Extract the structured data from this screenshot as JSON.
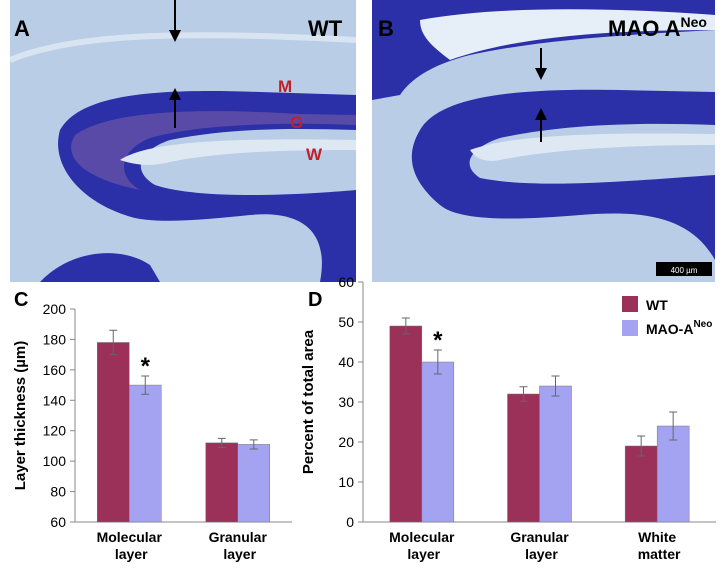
{
  "images": [
    {
      "label": "A",
      "tag": "WT",
      "layers": [
        "M",
        "G",
        "W"
      ]
    },
    {
      "label": "B",
      "tag": "MAO A",
      "tag_sup": "Neo",
      "scale_bar": "400 µm"
    }
  ],
  "chart_data": [
    {
      "type": "bar",
      "panel_label": "C",
      "y_label": "Layer thickness (µm)",
      "categories": [
        "Molecular layer",
        "Granular layer"
      ],
      "series": [
        {
          "name": "WT",
          "color": "#9b3058",
          "values": [
            178,
            112
          ],
          "errors": [
            8,
            3
          ]
        },
        {
          "name": "MAO-A",
          "name_sup": "Neo",
          "color": "#a3a3f2",
          "values": [
            150,
            111
          ],
          "errors": [
            6,
            3
          ]
        }
      ],
      "annotation": "*",
      "ylim": [
        60,
        200
      ],
      "yticks": [
        60,
        80,
        100,
        120,
        140,
        160,
        180,
        200
      ]
    },
    {
      "type": "bar",
      "panel_label": "D",
      "y_label": "Percent of total area",
      "categories": [
        "Molecular layer",
        "Granular layer",
        "White matter"
      ],
      "series": [
        {
          "name": "WT",
          "color": "#9b3058",
          "values": [
            49,
            32,
            19
          ],
          "errors": [
            2,
            1.8,
            2.5
          ]
        },
        {
          "name": "MAO-A",
          "name_sup": "Neo",
          "color": "#a3a3f2",
          "values": [
            40,
            34,
            24
          ],
          "errors": [
            3,
            2.5,
            3.5
          ]
        }
      ],
      "annotation": "*",
      "legend": "top-right",
      "ylim": [
        0,
        60
      ],
      "yticks": [
        0,
        10,
        20,
        30,
        40,
        50,
        60
      ]
    }
  ]
}
